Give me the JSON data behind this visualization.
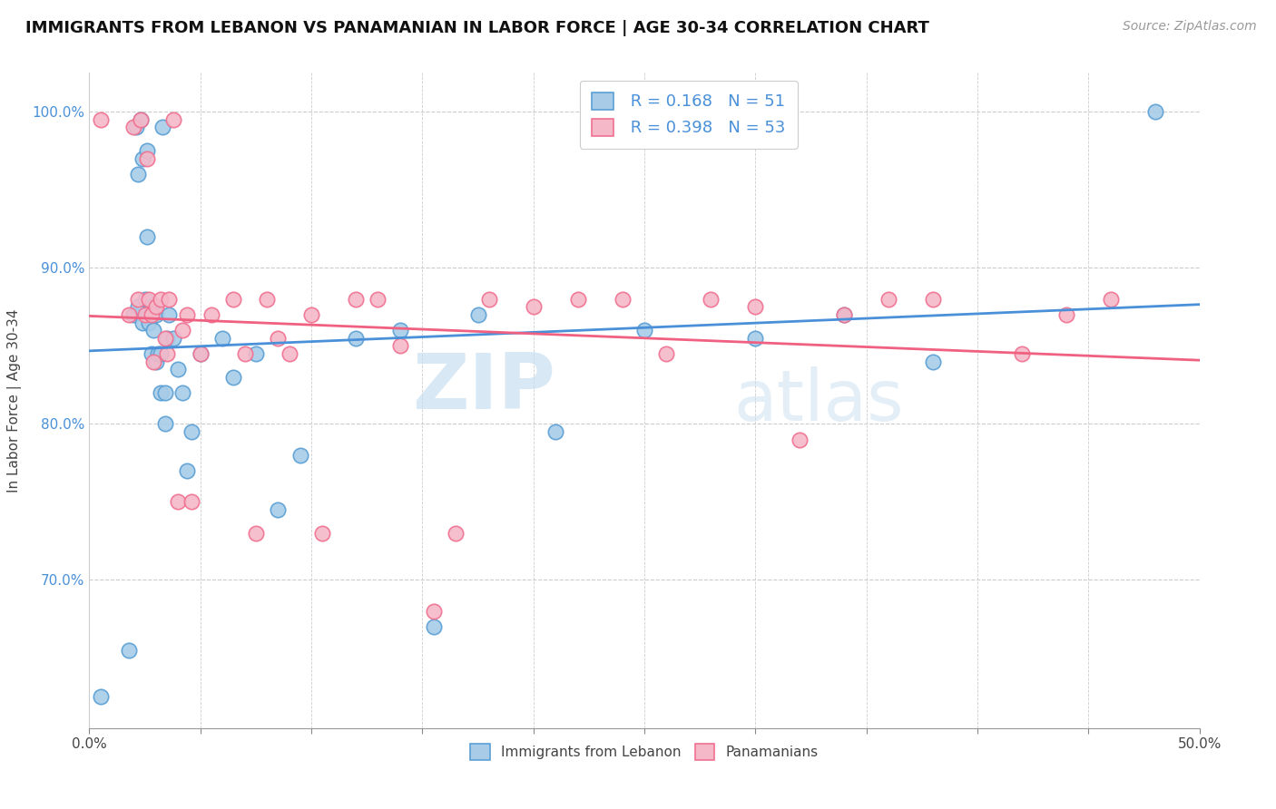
{
  "title": "IMMIGRANTS FROM LEBANON VS PANAMANIAN IN LABOR FORCE | AGE 30-34 CORRELATION CHART",
  "source": "Source: ZipAtlas.com",
  "ylabel": "In Labor Force | Age 30-34",
  "xlim": [
    0.0,
    0.5
  ],
  "ylim": [
    0.605,
    1.025
  ],
  "x_ticks": [
    0.0,
    0.05,
    0.1,
    0.15,
    0.2,
    0.25,
    0.3,
    0.35,
    0.4,
    0.45,
    0.5
  ],
  "x_tick_labels": [
    "0.0%",
    "",
    "",
    "",
    "",
    "",
    "",
    "",
    "",
    "",
    "50.0%"
  ],
  "y_ticks": [
    0.7,
    0.8,
    0.9,
    1.0
  ],
  "y_tick_labels": [
    "70.0%",
    "80.0%",
    "90.0%",
    "100.0%"
  ],
  "legend_labels": [
    "Immigrants from Lebanon",
    "Panamanians"
  ],
  "blue_R": "0.168",
  "blue_N": "51",
  "pink_R": "0.398",
  "pink_N": "53",
  "blue_color": "#a8cce8",
  "pink_color": "#f4b8c8",
  "blue_edge_color": "#5a9fd4",
  "pink_edge_color": "#f07090",
  "blue_line_color": "#4a90d9",
  "pink_line_color": "#f06080",
  "watermark_zip": "ZIP",
  "watermark_atlas": "atlas",
  "blue_scatter_x": [
    0.005,
    0.018,
    0.02,
    0.021,
    0.022,
    0.022,
    0.023,
    0.024,
    0.024,
    0.025,
    0.026,
    0.026,
    0.027,
    0.028,
    0.028,
    0.029,
    0.03,
    0.03,
    0.031,
    0.032,
    0.032,
    0.033,
    0.034,
    0.034,
    0.035,
    0.036,
    0.038,
    0.04,
    0.042,
    0.044,
    0.046,
    0.05,
    0.06,
    0.065,
    0.075,
    0.085,
    0.095,
    0.12,
    0.14,
    0.155,
    0.175,
    0.21,
    0.25,
    0.3,
    0.34,
    0.38,
    0.48
  ],
  "blue_scatter_y": [
    0.625,
    0.655,
    0.87,
    0.99,
    0.875,
    0.96,
    0.995,
    0.97,
    0.865,
    0.88,
    0.92,
    0.975,
    0.865,
    0.845,
    0.875,
    0.86,
    0.87,
    0.84,
    0.845,
    0.82,
    0.845,
    0.99,
    0.8,
    0.82,
    0.855,
    0.87,
    0.855,
    0.835,
    0.82,
    0.77,
    0.795,
    0.845,
    0.855,
    0.83,
    0.845,
    0.745,
    0.78,
    0.855,
    0.86,
    0.67,
    0.87,
    0.795,
    0.86,
    0.855,
    0.87,
    0.84,
    1.0
  ],
  "pink_scatter_x": [
    0.005,
    0.018,
    0.02,
    0.022,
    0.023,
    0.025,
    0.026,
    0.027,
    0.028,
    0.029,
    0.03,
    0.032,
    0.034,
    0.035,
    0.036,
    0.038,
    0.04,
    0.042,
    0.044,
    0.046,
    0.05,
    0.055,
    0.065,
    0.07,
    0.075,
    0.08,
    0.085,
    0.09,
    0.1,
    0.105,
    0.12,
    0.13,
    0.14,
    0.155,
    0.165,
    0.18,
    0.2,
    0.22,
    0.24,
    0.26,
    0.28,
    0.3,
    0.32,
    0.34,
    0.36,
    0.38,
    0.42,
    0.44,
    0.46
  ],
  "pink_scatter_y": [
    0.995,
    0.87,
    0.99,
    0.88,
    0.995,
    0.87,
    0.97,
    0.88,
    0.87,
    0.84,
    0.875,
    0.88,
    0.855,
    0.845,
    0.88,
    0.995,
    0.75,
    0.86,
    0.87,
    0.75,
    0.845,
    0.87,
    0.88,
    0.845,
    0.73,
    0.88,
    0.855,
    0.845,
    0.87,
    0.73,
    0.88,
    0.88,
    0.85,
    0.68,
    0.73,
    0.88,
    0.875,
    0.88,
    0.88,
    0.845,
    0.88,
    0.875,
    0.79,
    0.87,
    0.88,
    0.88,
    0.845,
    0.87,
    0.88
  ]
}
